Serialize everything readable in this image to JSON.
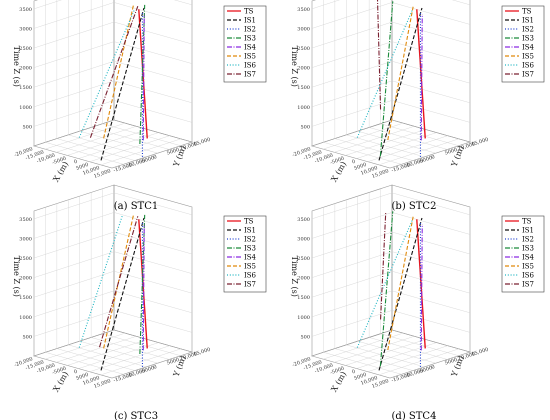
{
  "chart_data": [
    {
      "type": "line",
      "caption": "(a) STC1",
      "zlabel": "Time Z (s)",
      "xlabel": "X (m)",
      "ylabel": "Y (m)",
      "zticks": [
        "500",
        "1000",
        "1500",
        "2000",
        "2500",
        "3000",
        "3500"
      ],
      "xticks": [
        "-20,000",
        "-15,000",
        "-10,000",
        "-5000",
        "0",
        "5000",
        "10,000",
        "15,000"
      ],
      "yticks": [
        "15,000",
        "10,000",
        "5000",
        "0",
        "-5000",
        "-10,000",
        "-15,000"
      ],
      "zlim": [
        0,
        3700
      ],
      "legend_position": "top-right",
      "series": [
        {
          "name": "TS",
          "color": "#e8141c",
          "dash": "solid",
          "p0": [
            3500,
            10000,
            0
          ],
          "p1": [
            14000,
            -2000,
            3700
          ]
        },
        {
          "name": "IS1",
          "color": "#111111",
          "dash": "dashed",
          "p0": [
            9000,
            -13000,
            0
          ],
          "p1": [
            8000,
            5000,
            3500
          ]
        },
        {
          "name": "IS2",
          "color": "#1f3fd1",
          "dash": "dotted",
          "p0": [
            17000,
            -3000,
            0
          ],
          "p1": [
            17000,
            -3000,
            3700
          ]
        },
        {
          "name": "IS3",
          "color": "#1a8a3a",
          "dash": "dashdot",
          "p0": [
            6000,
            5000,
            0
          ],
          "p1": [
            12000,
            2000,
            3700
          ]
        },
        {
          "name": "IS4",
          "color": "#8a2be2",
          "dash": "dashdot",
          "p0": [
            4000,
            8000,
            0
          ],
          "p1": [
            13000,
            1000,
            3500
          ]
        },
        {
          "name": "IS5",
          "color": "#e0890a",
          "dash": "dashed",
          "p0": [
            -8000,
            2000,
            0
          ],
          "p1": [
            9000,
            0,
            3700
          ]
        },
        {
          "name": "IS6",
          "color": "#19b3c0",
          "dash": "dotted",
          "p0": [
            -15000,
            -2000,
            0
          ],
          "p1": [
            7000,
            2000,
            3500
          ]
        },
        {
          "name": "IS7",
          "color": "#7a2030",
          "dash": "dashdot",
          "p0": [
            -12000,
            0,
            0
          ],
          "p1": [
            5000,
            5000,
            3500
          ]
        }
      ]
    },
    {
      "type": "line",
      "caption": "(b) STC2",
      "zlabel": "Time Z (s)",
      "xlabel": "X (m)",
      "ylabel": "Y (m)",
      "zticks": [
        "500",
        "1000",
        "1500",
        "2000",
        "2500",
        "3000",
        "3500"
      ],
      "xticks": [
        "-20,000",
        "-15,000",
        "-10,000",
        "-5000",
        "0",
        "5000",
        "10,000",
        "15,000"
      ],
      "yticks": [
        "15,000",
        "10,000",
        "5000",
        "0",
        "-5000",
        "-10,000",
        "-15,000"
      ],
      "zlim": [
        0,
        3700
      ],
      "legend_position": "top-right",
      "series": [
        {
          "name": "TS",
          "color": "#e8141c",
          "dash": "solid",
          "p0": [
            3500,
            10000,
            0
          ],
          "p1": [
            14000,
            -2000,
            3700
          ]
        },
        {
          "name": "IS1",
          "color": "#111111",
          "dash": "dashed",
          "p0": [
            9000,
            -13000,
            0
          ],
          "p1": [
            8000,
            5000,
            3500
          ]
        },
        {
          "name": "IS2",
          "color": "#1f3fd1",
          "dash": "dotted",
          "p0": [
            17000,
            -3000,
            0
          ],
          "p1": [
            17000,
            -3000,
            3700
          ]
        },
        {
          "name": "IS3",
          "color": "#1a8a3a",
          "dash": "dashdot",
          "p0": [
            6000,
            -10000,
            0
          ],
          "p1": [
            -5000,
            4000,
            3500
          ]
        },
        {
          "name": "IS4",
          "color": "#8a2be2",
          "dash": "dashdot",
          "p0": [
            4000,
            8000,
            0
          ],
          "p1": [
            13000,
            1000,
            3500
          ]
        },
        {
          "name": "IS5",
          "color": "#e0890a",
          "dash": "dashed",
          "p0": [
            -5000,
            2000,
            0
          ],
          "p1": [
            11000,
            -1000,
            3700
          ]
        },
        {
          "name": "IS6",
          "color": "#19b3c0",
          "dash": "dotted",
          "p0": [
            -15000,
            -2000,
            0
          ],
          "p1": [
            7000,
            2000,
            3500
          ]
        },
        {
          "name": "IS7",
          "color": "#7a2030",
          "dash": "dashdot",
          "p0": [
            0,
            -5000,
            1000
          ],
          "p1": [
            -10000,
            2000,
            3500
          ]
        }
      ]
    },
    {
      "type": "line",
      "caption": "(c) STC3",
      "zlabel": "Time Z (s)",
      "xlabel": "X (m)",
      "ylabel": "Y (m)",
      "zticks": [
        "500",
        "1000",
        "1500",
        "2000",
        "2500",
        "3000",
        "3500"
      ],
      "xticks": [
        "-20,000",
        "-15,000",
        "-10,000",
        "-5000",
        "0",
        "5000",
        "10,000",
        "15,000"
      ],
      "yticks": [
        "15,000",
        "10,000",
        "5000",
        "0",
        "-5000",
        "-10,000",
        "-15,000"
      ],
      "zlim": [
        0,
        3700
      ],
      "legend_position": "top-right",
      "series": [
        {
          "name": "TS",
          "color": "#e8141c",
          "dash": "solid",
          "p0": [
            3500,
            10000,
            0
          ],
          "p1": [
            14000,
            -2000,
            3700
          ]
        },
        {
          "name": "IS1",
          "color": "#111111",
          "dash": "dashed",
          "p0": [
            9000,
            -13000,
            0
          ],
          "p1": [
            8000,
            5000,
            3500
          ]
        },
        {
          "name": "IS2",
          "color": "#1f3fd1",
          "dash": "dotted",
          "p0": [
            17000,
            -3000,
            0
          ],
          "p1": [
            17000,
            -3000,
            3700
          ]
        },
        {
          "name": "IS3",
          "color": "#1a8a3a",
          "dash": "dashdot",
          "p0": [
            6000,
            5000,
            0
          ],
          "p1": [
            12000,
            2000,
            3700
          ]
        },
        {
          "name": "IS4",
          "color": "#8a2be2",
          "dash": "dashdot",
          "p0": [
            4000,
            8000,
            0
          ],
          "p1": [
            13000,
            1000,
            3500
          ]
        },
        {
          "name": "IS5",
          "color": "#e0890a",
          "dash": "dashed",
          "p0": [
            -8000,
            2000,
            0
          ],
          "p1": [
            9000,
            0,
            3700
          ]
        },
        {
          "name": "IS6",
          "color": "#19b3c0",
          "dash": "dotted",
          "p0": [
            -15000,
            -2000,
            0
          ],
          "p1": [
            0,
            3000,
            3500
          ]
        },
        {
          "name": "IS7",
          "color": "#7a2030",
          "dash": "dashdot",
          "p0": [
            -10000,
            2000,
            0
          ],
          "p1": [
            5000,
            5000,
            3500
          ]
        }
      ]
    },
    {
      "type": "line",
      "caption": "(d) STC4",
      "zlabel": "Time Z (s)",
      "xlabel": "X (m)",
      "ylabel": "Y (m)",
      "zticks": [
        "500",
        "1000",
        "1500",
        "2000",
        "2500",
        "3000",
        "3500"
      ],
      "xticks": [
        "-20,000",
        "-15,000",
        "-10,000",
        "-5000",
        "0",
        "5000",
        "10,000",
        "15,000"
      ],
      "yticks": [
        "15,000",
        "10,000",
        "5000",
        "0",
        "-5000",
        "-10,000",
        "-15,000"
      ],
      "zlim": [
        0,
        3700
      ],
      "legend_position": "top-right",
      "series": [
        {
          "name": "TS",
          "color": "#e8141c",
          "dash": "solid",
          "p0": [
            3500,
            10000,
            0
          ],
          "p1": [
            14000,
            -2000,
            3700
          ]
        },
        {
          "name": "IS1",
          "color": "#111111",
          "dash": "dashed",
          "p0": [
            9000,
            -13000,
            0
          ],
          "p1": [
            8000,
            5000,
            3500
          ]
        },
        {
          "name": "IS2",
          "color": "#1f3fd1",
          "dash": "dotted",
          "p0": [
            17000,
            -3000,
            0
          ],
          "p1": [
            17000,
            -3000,
            3700
          ]
        },
        {
          "name": "IS3",
          "color": "#1a8a3a",
          "dash": "dashdot",
          "p0": [
            6000,
            -10000,
            0
          ],
          "p1": [
            -5000,
            4000,
            3500
          ]
        },
        {
          "name": "IS4",
          "color": "#8a2be2",
          "dash": "dashdot",
          "p0": [
            4000,
            8000,
            0
          ],
          "p1": [
            13000,
            1000,
            3500
          ]
        },
        {
          "name": "IS5",
          "color": "#e0890a",
          "dash": "dashed",
          "p0": [
            -5000,
            2000,
            0
          ],
          "p1": [
            11000,
            -1000,
            3700
          ]
        },
        {
          "name": "IS6",
          "color": "#19b3c0",
          "dash": "dotted",
          "p0": [
            -15000,
            -2000,
            0
          ],
          "p1": [
            7000,
            2000,
            3500
          ]
        },
        {
          "name": "IS7",
          "color": "#7a2030",
          "dash": "dashdot",
          "p0": [
            0,
            -5000,
            1000
          ],
          "p1": [
            -6000,
            2000,
            3500
          ]
        }
      ]
    }
  ]
}
